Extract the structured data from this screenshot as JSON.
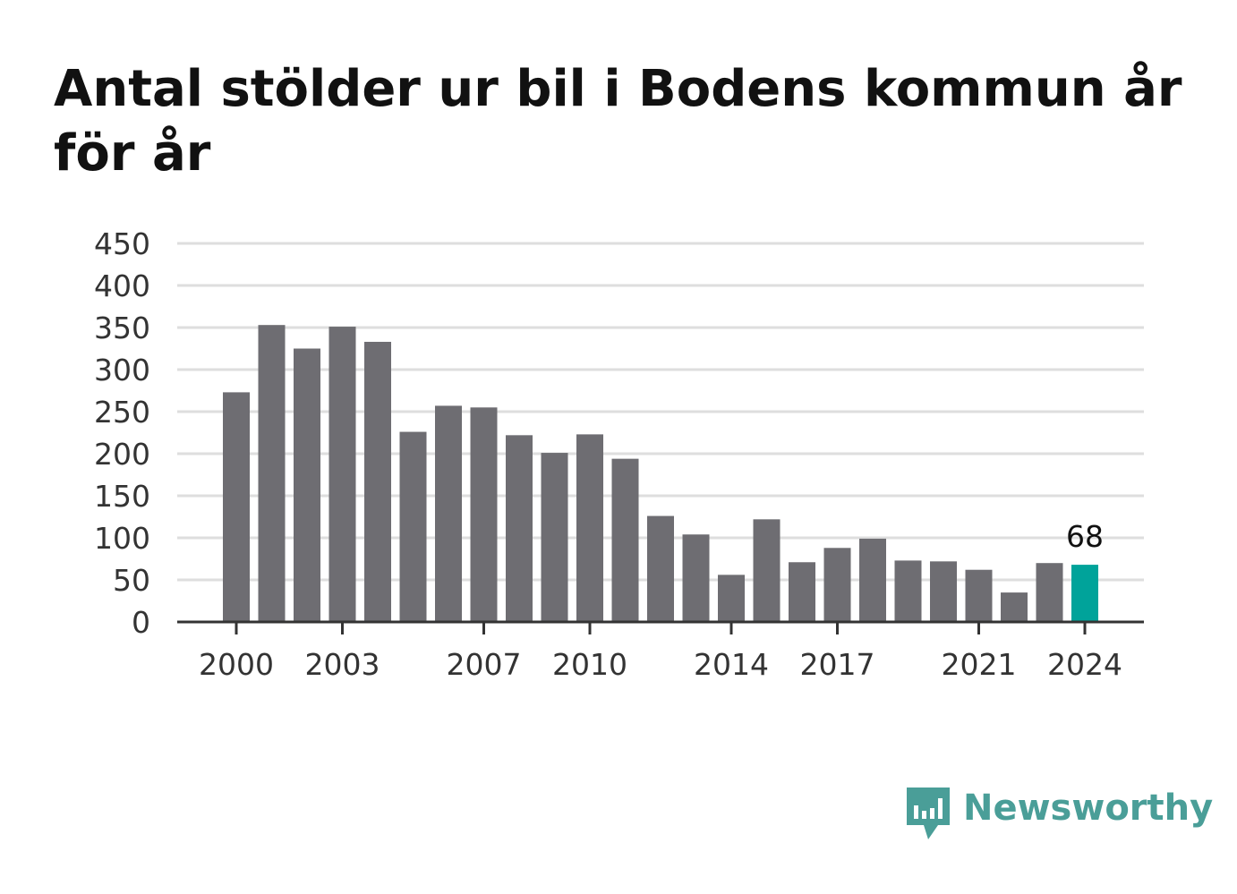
{
  "header": {
    "title": "Antal stölder ur bil i Bodens kommun år för år"
  },
  "brand": {
    "name": "Newsworthy",
    "logo_icon": "bar-chart-speech-bubble-icon",
    "color": "#4a9e98"
  },
  "chart_data": {
    "type": "bar",
    "title": "Antal stölder ur bil i Bodens kommun år för år",
    "xlabel": "",
    "ylabel": "",
    "categories": [
      "2000",
      "2001",
      "2002",
      "2003",
      "2004",
      "2005",
      "2006",
      "2007",
      "2008",
      "2009",
      "2010",
      "2011",
      "2012",
      "2013",
      "2014",
      "2015",
      "2016",
      "2017",
      "2018",
      "2019",
      "2020",
      "2021",
      "2022",
      "2023",
      "2024"
    ],
    "values": [
      273,
      353,
      325,
      351,
      333,
      226,
      257,
      255,
      222,
      201,
      223,
      194,
      126,
      104,
      56,
      122,
      71,
      88,
      99,
      73,
      72,
      62,
      35,
      70,
      68
    ],
    "ylim": [
      0,
      450
    ],
    "yticks": [
      0,
      50,
      100,
      150,
      200,
      250,
      300,
      350,
      400,
      450
    ],
    "xtick_labels": [
      "2000",
      "2003",
      "2007",
      "2010",
      "2014",
      "2017",
      "2021",
      "2024"
    ],
    "highlight": {
      "category": "2024",
      "label": "68"
    },
    "grid": true,
    "colors": {
      "bar": "#6e6d72",
      "highlight": "#00a39a",
      "grid": "#dedede",
      "axis": "#333333"
    }
  }
}
